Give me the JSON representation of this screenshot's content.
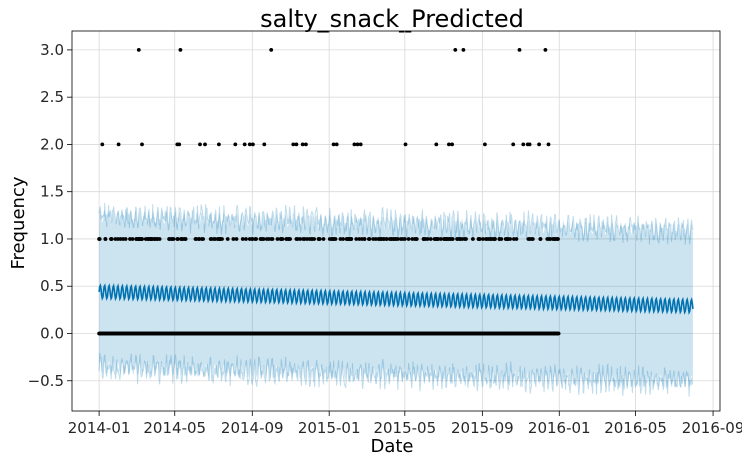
{
  "chart_data": {
    "type": "line",
    "title": "salty_snack_Predicted",
    "xlabel": "Date",
    "ylabel": "Frequency",
    "x_range": [
      "2013-11-19",
      "2016-09-12"
    ],
    "ylim": [
      -0.82,
      3.2
    ],
    "grid": true,
    "x_ticks": [
      "2014-01",
      "2014-05",
      "2014-09",
      "2015-01",
      "2015-05",
      "2015-09",
      "2016-01",
      "2016-05",
      "2016-09"
    ],
    "y_ticks": [
      -0.5,
      0.0,
      0.5,
      1.0,
      1.5,
      2.0,
      2.5,
      3.0
    ],
    "y_tick_labels": [
      "−0.5",
      "0.0",
      "0.5",
      "1.0",
      "1.5",
      "2.0",
      "2.5",
      "3.0"
    ],
    "forecast": {
      "start": "2014-01-01",
      "end": "2016-07-31",
      "trend_start": 0.44,
      "trend_end": 0.29,
      "weekly_amplitude": 0.07,
      "upper_offset": 0.8,
      "lower_offset": -0.8,
      "color": "#0072b2",
      "band_color": "#0072b2"
    },
    "observed": {
      "start": "2014-01-01",
      "end": "2015-12-31",
      "color": "#000000",
      "points_y2": [
        "2014-01-06",
        "2014-02-01",
        "2014-03-10",
        "2014-05-05",
        "2014-05-08",
        "2014-06-10",
        "2014-06-18",
        "2014-07-10",
        "2014-08-05",
        "2014-08-20",
        "2014-08-28",
        "2014-09-02",
        "2014-09-20",
        "2014-11-05",
        "2014-11-10",
        "2014-11-20",
        "2014-11-25",
        "2015-01-08",
        "2015-01-13",
        "2015-02-10",
        "2015-02-15",
        "2015-02-20",
        "2015-05-02",
        "2015-06-20",
        "2015-07-10",
        "2015-07-15",
        "2015-09-05",
        "2015-10-20",
        "2015-11-05",
        "2015-11-12",
        "2015-11-15",
        "2015-11-30",
        "2015-12-15"
      ],
      "points_y3": [
        "2014-03-05",
        "2014-05-10",
        "2014-10-01",
        "2015-07-20",
        "2015-08-02",
        "2015-10-30",
        "2015-12-10"
      ],
      "ones_count": 230
    }
  }
}
